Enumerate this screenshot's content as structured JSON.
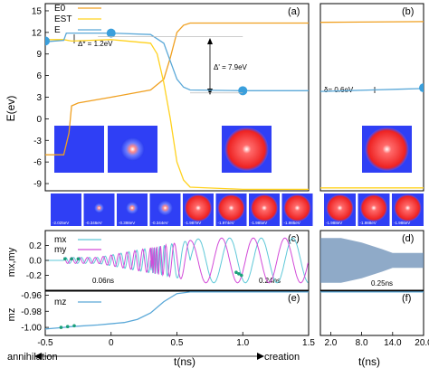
{
  "colors": {
    "E0": "#f0a020",
    "EST": "#ffd21f",
    "E": "#5aa8d8",
    "mx": "#5ec8d8",
    "my": "#d24ad8",
    "mz": "#5aa8d8",
    "dots": "#1aa07a",
    "marker": "#3a9fdc"
  },
  "chart_data": [
    {
      "id": "a",
      "type": "line",
      "panel_label": "(a)",
      "ylabel": "E(ev)",
      "xlim": [
        -0.5,
        1.5
      ],
      "ylim": [
        -10,
        16
      ],
      "yticks": [
        "-9",
        "-6",
        "-3",
        "0",
        "3",
        "6",
        "9",
        "12",
        "15"
      ],
      "legend": [
        "E0",
        "EST",
        "E"
      ],
      "series": [
        {
          "name": "E0",
          "x": [
            -0.5,
            -0.36,
            -0.32,
            -0.3,
            -0.25,
            0,
            0.3,
            0.4,
            0.45,
            0.5,
            0.55,
            0.6,
            1.0,
            1.5
          ],
          "y": [
            -5,
            -5,
            -2,
            1.8,
            2.2,
            3.0,
            4.0,
            5.5,
            8.5,
            12,
            13,
            13.3,
            13.3,
            13.3
          ]
        },
        {
          "name": "EST",
          "x": [
            -0.5,
            -0.36,
            -0.3,
            0,
            0.3,
            0.35,
            0.4,
            0.45,
            0.5,
            0.55,
            0.6,
            1.0,
            1.5
          ],
          "y": [
            11,
            11,
            10.8,
            11,
            10.5,
            9,
            5,
            0,
            -6,
            -8.5,
            -9.5,
            -9.8,
            -9.8
          ]
        },
        {
          "name": "E",
          "x": [
            -0.5,
            -0.36,
            -0.34,
            -0.2,
            0,
            0.3,
            0.4,
            0.45,
            0.5,
            0.55,
            0.6,
            1.0,
            1.5
          ],
          "y": [
            10.7,
            10.9,
            11.9,
            11.9,
            11.9,
            11.7,
            10.5,
            8,
            5.5,
            4.4,
            4.0,
            3.9,
            3.9
          ]
        }
      ],
      "markers": [
        {
          "x": -0.5,
          "y": 10.8
        },
        {
          "x": 0.0,
          "y": 11.9
        },
        {
          "x": 1.0,
          "y": 3.9
        }
      ],
      "annotations": {
        "delta_star": "Δ* = 1.2eV",
        "delta_prime": "Δ' = 7.9eV"
      }
    },
    {
      "id": "b",
      "type": "line",
      "panel_label": "(b)",
      "xlim": [
        0,
        20
      ],
      "ylim": [
        -10,
        16
      ],
      "series": [
        {
          "name": "E0",
          "x": [
            0,
            20
          ],
          "y": [
            13.4,
            13.5
          ]
        },
        {
          "name": "EST",
          "x": [
            0,
            20
          ],
          "y": [
            -9.6,
            -9.6
          ]
        },
        {
          "name": "E",
          "x": [
            0,
            5,
            10,
            15,
            20
          ],
          "y": [
            3.8,
            3.9,
            4.0,
            4.1,
            4.2
          ]
        }
      ],
      "markers": [
        {
          "x": 20,
          "y": 4.3
        }
      ],
      "annotations": {
        "delta": "δ= 0.6eV"
      }
    },
    {
      "id": "c",
      "type": "line",
      "panel_label": "(c)",
      "ylabel": "mx,my",
      "xlim": [
        -0.5,
        1.5
      ],
      "ylim": [
        -0.4,
        0.4
      ],
      "yticks": [
        "-0.2",
        "0.0",
        "0.2"
      ],
      "legend": [
        "mx",
        "my"
      ],
      "wave": {
        "start": -0.36,
        "period_early": 0.06,
        "period_late": 0.24,
        "amp_early": 0.04,
        "amp_late": 0.3
      },
      "annotations": {
        "t1": "0.06ns",
        "t2": "0.24ns"
      }
    },
    {
      "id": "d",
      "type": "area",
      "panel_label": "(d)",
      "xlim": [
        0,
        20
      ],
      "ylim": [
        -0.4,
        0.4
      ],
      "envelope": {
        "x": [
          0,
          4,
          8,
          12,
          14,
          20
        ],
        "y": [
          0.3,
          0.3,
          0.24,
          0.15,
          0.1,
          0.1
        ]
      },
      "annotations": {
        "t3": "0.25ns"
      }
    },
    {
      "id": "e",
      "type": "line",
      "panel_label": "(e)",
      "ylabel": "mz",
      "xlim": [
        -0.5,
        1.5
      ],
      "ylim": [
        -1.01,
        -0.955
      ],
      "yticks": [
        "-1.00",
        "-0.98",
        "-0.96"
      ],
      "xticks": [
        "-0.5",
        "0",
        "0.5",
        "1.0",
        "1.5"
      ],
      "legend": [
        "mz"
      ],
      "series": [
        {
          "name": "mz",
          "x": [
            -0.5,
            -0.36,
            -0.3,
            -0.1,
            0.1,
            0.2,
            0.3,
            0.4,
            0.5,
            0.6,
            1.0,
            1.5
          ],
          "y": [
            -1.002,
            -1.0,
            -0.999,
            -0.997,
            -0.994,
            -0.99,
            -0.982,
            -0.968,
            -0.958,
            -0.956,
            -0.956,
            -0.956
          ]
        }
      ],
      "dots": [
        {
          "x": -0.38,
          "y": -1.0
        },
        {
          "x": -0.33,
          "y": -0.999
        },
        {
          "x": -0.28,
          "y": -0.998
        }
      ]
    },
    {
      "id": "f",
      "type": "line",
      "panel_label": "(f)",
      "xlim": [
        0,
        20
      ],
      "ylim": [
        -1.01,
        -0.955
      ],
      "xticks": [
        "2.0",
        "8.0",
        "14.0",
        "20.0"
      ],
      "series": [
        {
          "name": "mz",
          "x": [
            0,
            20
          ],
          "y": [
            -0.956,
            -0.956
          ]
        }
      ]
    }
  ],
  "xlabel": "t(ns)",
  "xlabel_right": "t(ns)",
  "arrow_left": "annihilation",
  "arrow_right": "creation",
  "strip_labels": [
    "-2.025eV",
    "-0.346eV",
    "-0.398eV",
    "-0.344eV",
    "-1.987eV",
    "-1.974eV",
    "-1.985eV",
    "-1.985eV",
    "-1.988eV",
    "-1.988eV",
    "-1.986eV"
  ]
}
